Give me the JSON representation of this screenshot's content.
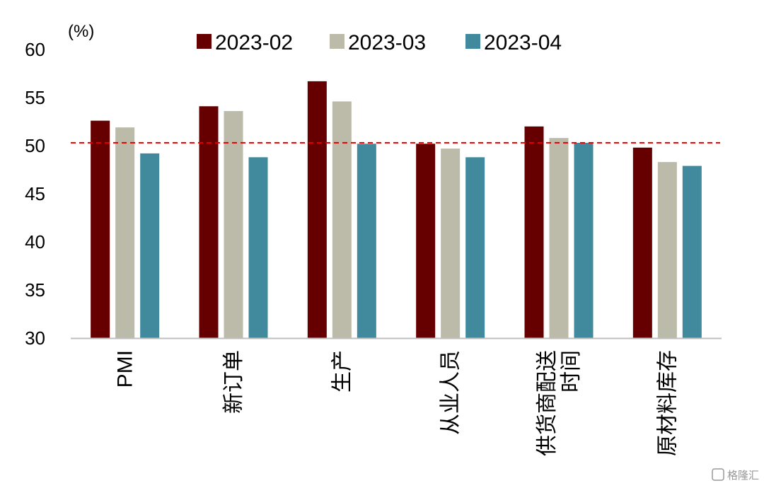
{
  "chart_data": {
    "type": "bar",
    "unit_label": "(%)",
    "categories": [
      "PMI",
      "新订单",
      "生产",
      "从业人员",
      "供货商配送时间",
      "原材料库存"
    ],
    "category_lines": [
      [
        "PMI"
      ],
      [
        "新订单"
      ],
      [
        "生产"
      ],
      [
        "从业人员"
      ],
      [
        "供货商配送",
        "时间"
      ],
      [
        "原材料库存"
      ]
    ],
    "series": [
      {
        "name": "2023-02",
        "color": "#660000",
        "values": [
          52.6,
          54.1,
          56.7,
          50.2,
          52.0,
          49.8
        ]
      },
      {
        "name": "2023-03",
        "color": "#BCBAA8",
        "values": [
          51.9,
          53.6,
          54.6,
          49.7,
          50.8,
          48.3
        ]
      },
      {
        "name": "2023-04",
        "color": "#418A9E",
        "values": [
          49.2,
          48.8,
          50.2,
          48.8,
          50.3,
          47.9
        ]
      }
    ],
    "ylim": [
      30,
      60
    ],
    "yticks": [
      30,
      35,
      40,
      45,
      50,
      55,
      60
    ],
    "reference_line": {
      "value": 50.3,
      "color": "#E00000",
      "style": "dashed"
    },
    "legend_position": "top",
    "grid": false
  },
  "watermark": "格隆汇"
}
